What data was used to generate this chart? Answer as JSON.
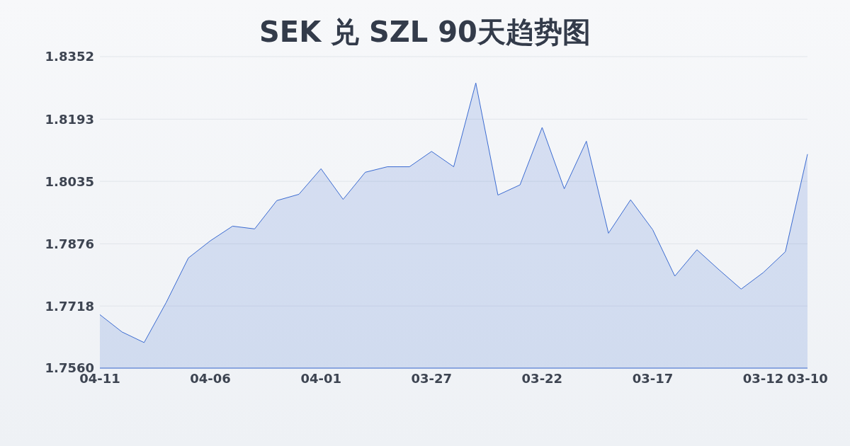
{
  "chart_data": {
    "type": "area",
    "title": "SEK 兑 SZL 90天趋势图",
    "categories": [
      "04-11",
      null,
      null,
      null,
      null,
      "04-06",
      null,
      null,
      null,
      null,
      "04-01",
      null,
      null,
      null,
      null,
      "03-27",
      null,
      null,
      null,
      null,
      "03-22",
      null,
      null,
      null,
      null,
      "03-17",
      null,
      null,
      null,
      null,
      "03-12",
      null,
      "03-10"
    ],
    "series": [
      {
        "color": "#3b6bd1",
        "values": [
          1.7696,
          1.7652,
          1.7625,
          1.7727,
          1.784,
          1.7884,
          1.7921,
          1.7914,
          1.7986,
          1.8002,
          1.8067,
          1.7989,
          1.8058,
          1.8072,
          1.8072,
          1.8111,
          1.8072,
          1.8285,
          1.8,
          1.8026,
          1.8172,
          1.8016,
          1.8137,
          1.7903,
          1.7988,
          1.7912,
          1.7794,
          1.7861,
          1.781,
          1.7761,
          1.7803,
          1.7856,
          1.8104
        ]
      }
    ],
    "ylim": [
      1.756,
      1.8352
    ],
    "yticks": [
      {
        "value": 1.756,
        "label": "1.7560"
      },
      {
        "value": 1.7718,
        "label": "1.7718"
      },
      {
        "value": 1.7876,
        "label": "1.7876"
      },
      {
        "value": 1.8035,
        "label": "1.8035"
      },
      {
        "value": 1.8193,
        "label": "1.8193"
      },
      {
        "value": 1.8352,
        "label": "1.8352"
      }
    ],
    "grid": "y",
    "marker": "none",
    "line_style": "solid"
  }
}
